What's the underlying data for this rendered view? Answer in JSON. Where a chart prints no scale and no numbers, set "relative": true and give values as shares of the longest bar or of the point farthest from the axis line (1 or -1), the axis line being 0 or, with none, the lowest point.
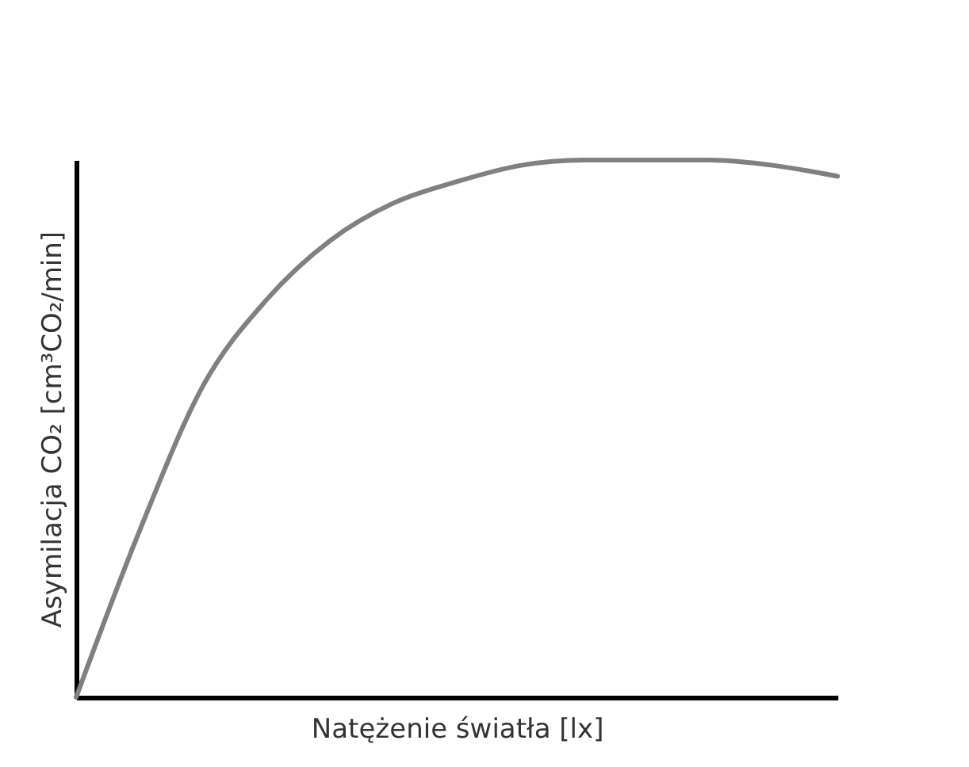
{
  "chart_data": {
    "type": "line",
    "relative": true,
    "xlabel": "Natężenie światła [lx]",
    "ylabel": "Asymilacja CO₂  [cm³CO₂/min]",
    "categories": [
      null,
      null,
      null,
      null,
      null,
      null,
      null,
      null,
      null,
      null,
      null,
      null,
      null
    ],
    "series": [
      {
        "color": "#808080",
        "values": [
          0,
          0.31,
          0.58,
          0.74,
          0.85,
          0.92,
          0.96,
          0.99,
          1,
          1,
          1,
          0.99,
          0.97
        ]
      }
    ],
    "line_style": "solid"
  }
}
